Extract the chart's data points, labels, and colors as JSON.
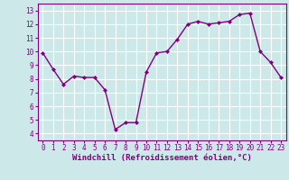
{
  "x": [
    0,
    1,
    2,
    3,
    4,
    5,
    6,
    7,
    8,
    9,
    10,
    11,
    12,
    13,
    14,
    15,
    16,
    17,
    18,
    19,
    20,
    21,
    22,
    23
  ],
  "y": [
    9.9,
    8.7,
    7.6,
    8.2,
    8.1,
    8.1,
    7.2,
    4.3,
    4.8,
    4.8,
    8.5,
    9.9,
    10.0,
    10.9,
    12.0,
    12.2,
    12.0,
    12.1,
    12.2,
    12.7,
    12.8,
    10.0,
    9.2,
    8.1
  ],
  "line_color": "#800080",
  "marker": "D",
  "marker_size": 2,
  "bg_color": "#cde8e8",
  "grid_color": "#ffffff",
  "xlabel": "Windchill (Refroidissement éolien,°C)",
  "xlabel_color": "#800080",
  "tick_color": "#800080",
  "ylim": [
    3.5,
    13.5
  ],
  "xlim": [
    -0.5,
    23.5
  ],
  "yticks": [
    4,
    5,
    6,
    7,
    8,
    9,
    10,
    11,
    12,
    13
  ],
  "xticks": [
    0,
    1,
    2,
    3,
    4,
    5,
    6,
    7,
    8,
    9,
    10,
    11,
    12,
    13,
    14,
    15,
    16,
    17,
    18,
    19,
    20,
    21,
    22,
    23
  ],
  "tick_fontsize": 5.5,
  "xlabel_fontsize": 6.5,
  "spine_color": "#800080",
  "linewidth": 1.0
}
